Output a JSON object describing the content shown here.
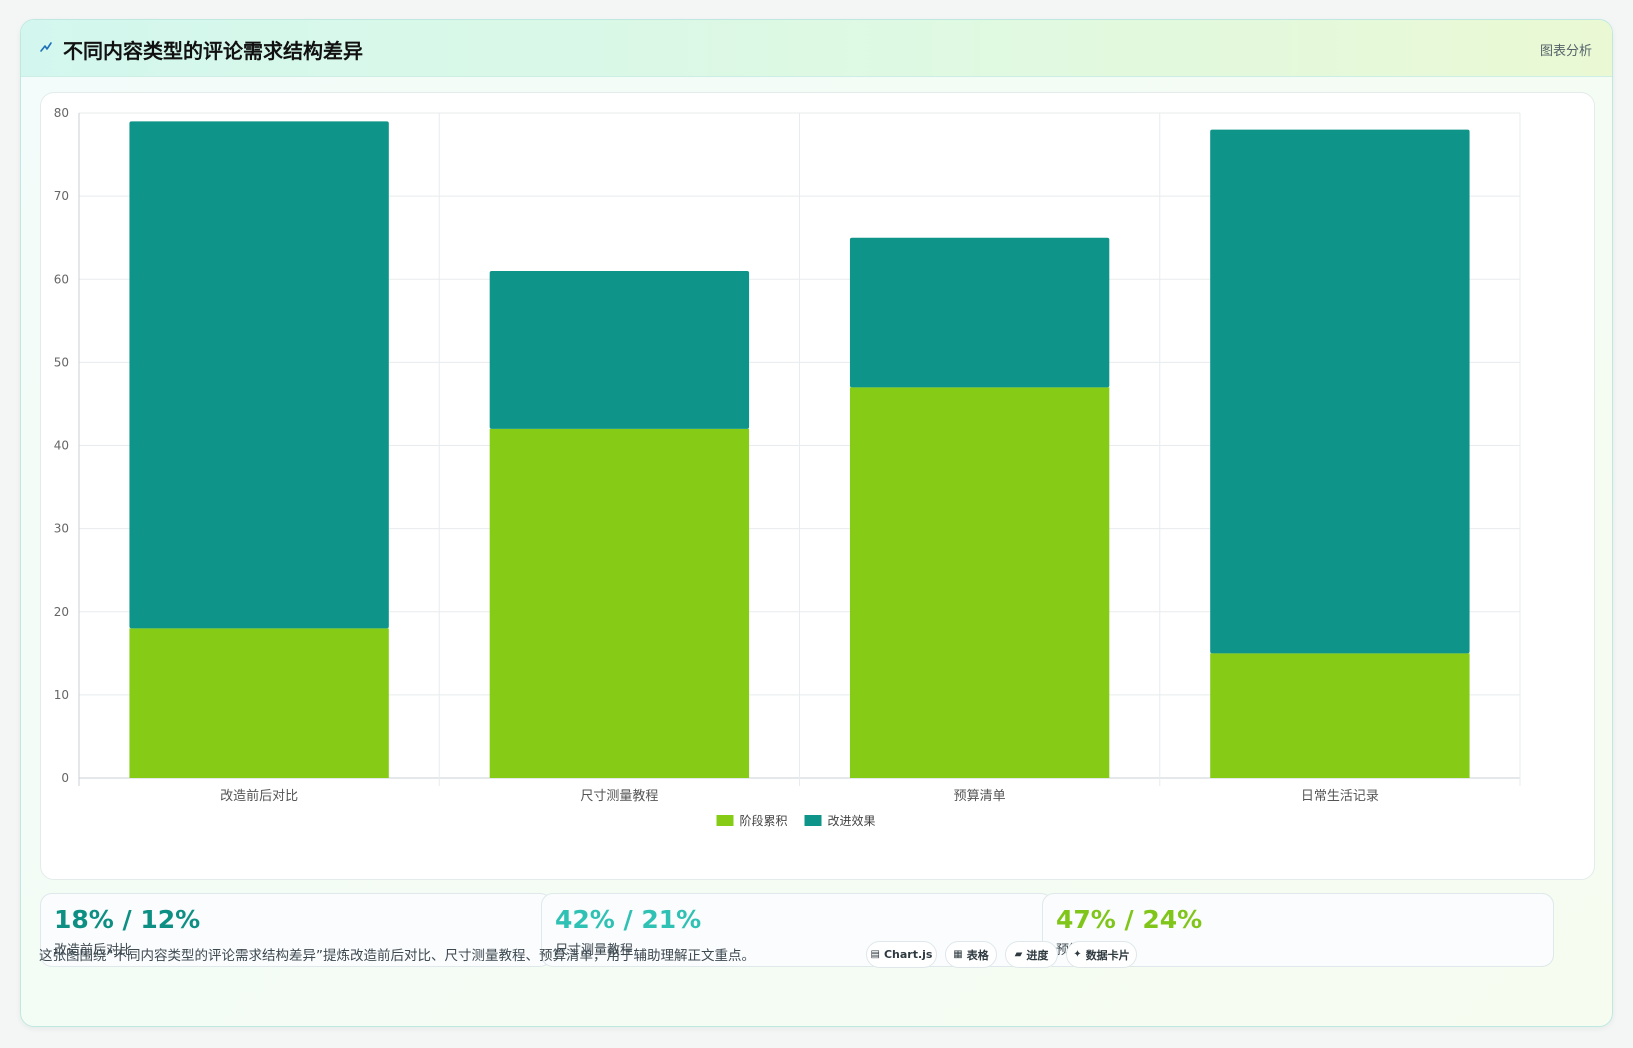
{
  "header": {
    "title": "不同内容类型的评论需求结构差异",
    "tag": "图表分析"
  },
  "colors": {
    "series_green": "#86cc17",
    "series_teal": "#0e9488",
    "stat_1": "#0e8f83",
    "stat_2": "#2fc1b4",
    "stat_3": "#80c61a"
  },
  "chart_data": {
    "type": "bar",
    "stacked": true,
    "categories": [
      "改造前后对比",
      "尺寸测量教程",
      "预算清单",
      "日常生活记录"
    ],
    "series": [
      {
        "name": "阶段累积",
        "values": [
          18,
          42,
          47,
          15
        ]
      },
      {
        "name": "改进效果",
        "values": [
          61,
          19,
          18,
          63
        ]
      }
    ],
    "ylim": [
      0,
      80
    ],
    "yticks": [
      0,
      10,
      20,
      30,
      40,
      50,
      60,
      70,
      80
    ],
    "grid": true,
    "legend": "bottom-center"
  },
  "stats": [
    {
      "value": "18% / 12%",
      "label": "改造前后对比"
    },
    {
      "value": "42% / 21%",
      "label": "尺寸测量教程"
    },
    {
      "value": "47% / 24%",
      "label": "预算清单"
    }
  ],
  "footnote": "这张图围绕“不同内容类型的评论需求结构差异”提炼改造前后对比、尺寸测量教程、预算清单，用于辅助理解正文重点。",
  "chips": [
    {
      "icon": "chart-icon",
      "glyph": "▤",
      "label": "Chart.js"
    },
    {
      "icon": "table-icon",
      "glyph": "▦",
      "label": "表格"
    },
    {
      "icon": "progress-icon",
      "glyph": "▰",
      "label": "进度"
    },
    {
      "icon": "sparkle-icon",
      "glyph": "✦",
      "label": "数据卡片"
    }
  ]
}
